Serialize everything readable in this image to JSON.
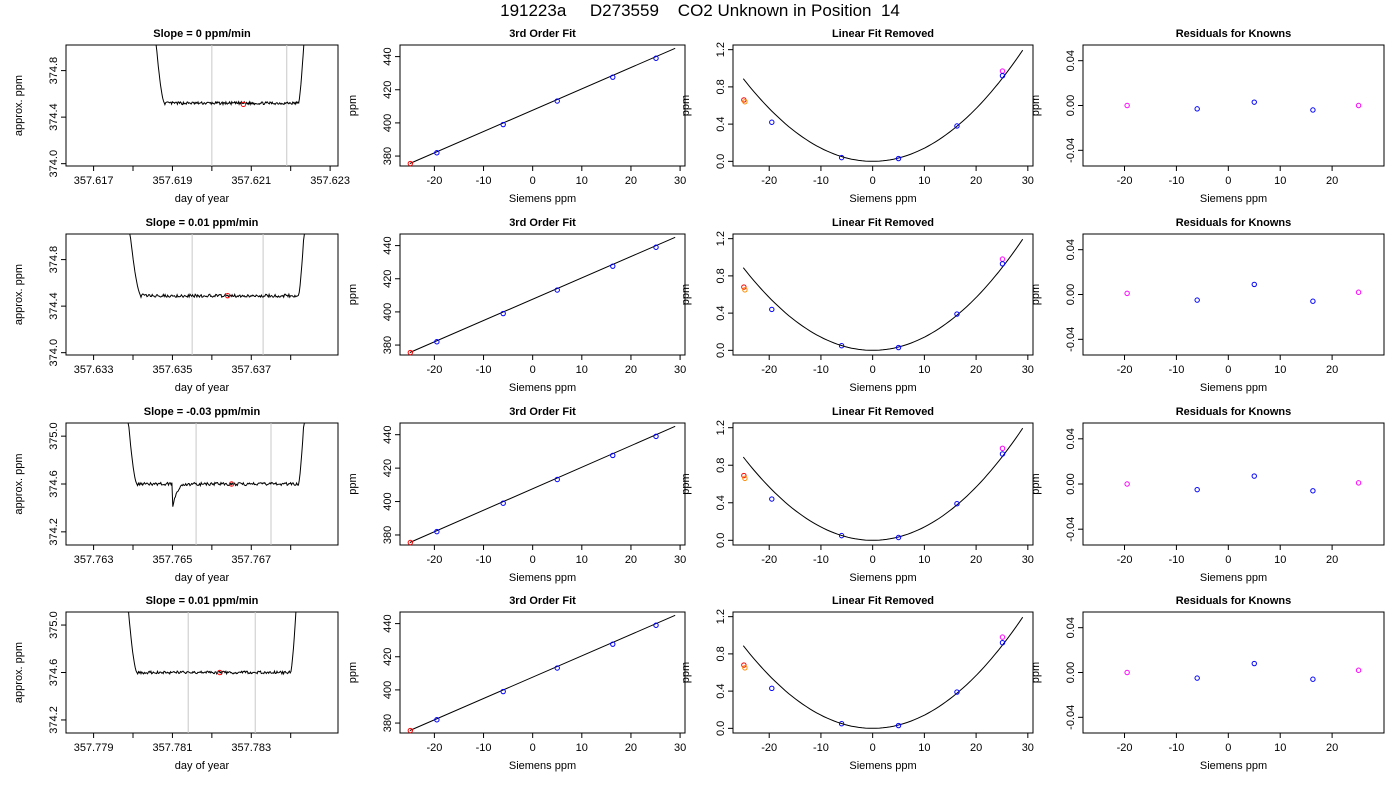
{
  "page_title": "191223a     D273559    CO2 Unknown in Position  14",
  "colors": {
    "line": "#000000",
    "cursor": "#c8c8c8",
    "point_red": "#ff0000",
    "point_blue": "#0000ff",
    "point_magenta": "#ff00ff",
    "point_orange": "#ff8c00"
  },
  "chart_data": [
    {
      "row": 1,
      "col": 1,
      "type": "line",
      "title": "Slope =  0  ppm/min",
      "xlabel": "day of year",
      "ylabel": "approx. ppm",
      "xlim": [
        357.6163,
        357.6232
      ],
      "ylim": [
        373.98,
        375.02
      ],
      "xticks": [
        "357.617",
        "357.619",
        "357.621",
        "357.623"
      ],
      "xticks_unlabeled": [
        357.618,
        357.62,
        357.622
      ],
      "yticks": [
        "374.0",
        "374.4",
        "374.8"
      ],
      "trace": {
        "start": 357.6184,
        "end": 357.6225,
        "flat_start": 357.6188,
        "flat_end": 357.6222,
        "baseline": 374.52,
        "noise": 0.012
      },
      "cursors": [
        357.62,
        357.6219
      ],
      "marker": {
        "x": 357.6208,
        "y": 374.51
      }
    },
    {
      "row": 1,
      "col": 2,
      "type": "scatter",
      "title": "3rd Order Fit",
      "xlabel": "Siemens ppm",
      "ylabel": "ppm",
      "xlim": [
        -27,
        31
      ],
      "ylim": [
        374,
        447
      ],
      "xticks": [
        "-20",
        "-10",
        "0",
        "10",
        "20",
        "30"
      ],
      "yticks": [
        "380",
        "400",
        "420",
        "440"
      ],
      "fit_line": {
        "x": [
          -25,
          29
        ],
        "y": [
          375.5,
          445.0
        ]
      },
      "points": [
        {
          "x": -24.9,
          "y": 375.5,
          "color": "red"
        },
        {
          "x": -19.5,
          "y": 382.0,
          "color": "blue"
        },
        {
          "x": -6.0,
          "y": 399.0,
          "color": "blue"
        },
        {
          "x": 5.0,
          "y": 413.2,
          "color": "blue"
        },
        {
          "x": 16.3,
          "y": 427.6,
          "color": "blue"
        },
        {
          "x": 25.1,
          "y": 439.0,
          "color": "blue"
        }
      ]
    },
    {
      "row": 1,
      "col": 3,
      "type": "scatter",
      "title": "Linear Fit Removed",
      "xlabel": "Siemens ppm",
      "ylabel": "ppm",
      "xlim": [
        -27,
        31
      ],
      "ylim": [
        -0.05,
        1.25
      ],
      "xticks": [
        "-20",
        "-10",
        "0",
        "10",
        "20",
        "30"
      ],
      "yticks": [
        "0.0",
        "0.4",
        "0.8",
        "1.2"
      ],
      "curve": {
        "coef": 0.00142,
        "xmin": -25,
        "xmax": 29
      },
      "points": [
        {
          "x": -24.9,
          "y": 0.66,
          "color": "red"
        },
        {
          "x": -24.7,
          "y": 0.64,
          "color": "orange"
        },
        {
          "x": -19.5,
          "y": 0.42,
          "color": "blue"
        },
        {
          "x": -6.0,
          "y": 0.04,
          "color": "blue"
        },
        {
          "x": 5.0,
          "y": 0.03,
          "color": "blue"
        },
        {
          "x": 16.3,
          "y": 0.38,
          "color": "blue"
        },
        {
          "x": 25.1,
          "y": 0.97,
          "color": "magenta"
        },
        {
          "x": 25.1,
          "y": 0.92,
          "color": "blue"
        }
      ]
    },
    {
      "row": 1,
      "col": 4,
      "type": "scatter",
      "title": "Residuals for Knowns",
      "xlabel": "Siemens ppm",
      "ylabel": "ppm",
      "xlim": [
        -28,
        30
      ],
      "ylim": [
        -0.054,
        0.054
      ],
      "xticks": [
        "-20",
        "-10",
        "0",
        "10",
        "20"
      ],
      "yticks": [
        "-0.04",
        "0.00",
        "0.04"
      ],
      "points": [
        {
          "x": -19.5,
          "y": 0.0,
          "color": "magenta"
        },
        {
          "x": -6.0,
          "y": -0.003,
          "color": "blue"
        },
        {
          "x": 5.0,
          "y": 0.003,
          "color": "blue"
        },
        {
          "x": 16.3,
          "y": -0.004,
          "color": "blue"
        },
        {
          "x": 25.1,
          "y": 0.0,
          "color": "magenta"
        }
      ]
    },
    {
      "row": 2,
      "col": 1,
      "type": "line",
      "title": "Slope =  0.01  ppm/min",
      "xlabel": "day of year",
      "ylabel": "approx. ppm",
      "xlim": [
        357.6323,
        357.6392
      ],
      "ylim": [
        373.98,
        375.02
      ],
      "xticks": [
        "357.633",
        "357.635",
        "357.637"
      ],
      "xticks_unlabeled": [
        357.634,
        357.636,
        357.638
      ],
      "yticks": [
        "374.0",
        "374.4",
        "374.8"
      ],
      "trace": {
        "start": 357.6337,
        "end": 357.6385,
        "flat_start": 357.6342,
        "flat_end": 357.6382,
        "baseline": 374.49,
        "noise": 0.014
      },
      "cursors": [
        357.6355,
        357.6373
      ],
      "marker": {
        "x": 357.6364,
        "y": 374.49
      }
    },
    {
      "row": 2,
      "col": 2,
      "type": "scatter",
      "title": "3rd Order Fit",
      "xlabel": "Siemens ppm",
      "ylabel": "ppm",
      "xlim": [
        -27,
        31
      ],
      "ylim": [
        374,
        447
      ],
      "xticks": [
        "-20",
        "-10",
        "0",
        "10",
        "20",
        "30"
      ],
      "yticks": [
        "380",
        "400",
        "420",
        "440"
      ],
      "fit_line": {
        "x": [
          -25,
          29
        ],
        "y": [
          375.5,
          445.0
        ]
      },
      "points": [
        {
          "x": -24.9,
          "y": 375.5,
          "color": "red"
        },
        {
          "x": -19.5,
          "y": 382.0,
          "color": "blue"
        },
        {
          "x": -6.0,
          "y": 399.0,
          "color": "blue"
        },
        {
          "x": 5.0,
          "y": 413.2,
          "color": "blue"
        },
        {
          "x": 16.3,
          "y": 427.6,
          "color": "blue"
        },
        {
          "x": 25.1,
          "y": 439.0,
          "color": "blue"
        }
      ]
    },
    {
      "row": 2,
      "col": 3,
      "type": "scatter",
      "title": "Linear Fit Removed",
      "xlabel": "Siemens ppm",
      "ylabel": "ppm",
      "xlim": [
        -27,
        31
      ],
      "ylim": [
        -0.05,
        1.25
      ],
      "xticks": [
        "-20",
        "-10",
        "0",
        "10",
        "20",
        "30"
      ],
      "yticks": [
        "0.0",
        "0.4",
        "0.8",
        "1.2"
      ],
      "curve": {
        "coef": 0.00142,
        "xmin": -25,
        "xmax": 29
      },
      "points": [
        {
          "x": -24.9,
          "y": 0.68,
          "color": "red"
        },
        {
          "x": -24.7,
          "y": 0.65,
          "color": "orange"
        },
        {
          "x": -19.5,
          "y": 0.44,
          "color": "blue"
        },
        {
          "x": -6.0,
          "y": 0.05,
          "color": "blue"
        },
        {
          "x": 5.0,
          "y": 0.03,
          "color": "blue"
        },
        {
          "x": 16.3,
          "y": 0.39,
          "color": "blue"
        },
        {
          "x": 25.1,
          "y": 0.98,
          "color": "magenta"
        },
        {
          "x": 25.1,
          "y": 0.93,
          "color": "blue"
        }
      ]
    },
    {
      "row": 2,
      "col": 4,
      "type": "scatter",
      "title": "Residuals for Knowns",
      "xlabel": "Siemens ppm",
      "ylabel": "ppm",
      "xlim": [
        -28,
        30
      ],
      "ylim": [
        -0.054,
        0.054
      ],
      "xticks": [
        "-20",
        "-10",
        "0",
        "10",
        "20"
      ],
      "yticks": [
        "-0.04",
        "0.00",
        "0.04"
      ],
      "points": [
        {
          "x": -19.5,
          "y": 0.001,
          "color": "magenta"
        },
        {
          "x": -6.0,
          "y": -0.005,
          "color": "blue"
        },
        {
          "x": 5.0,
          "y": 0.009,
          "color": "blue"
        },
        {
          "x": 16.3,
          "y": -0.006,
          "color": "blue"
        },
        {
          "x": 25.1,
          "y": 0.002,
          "color": "magenta"
        }
      ]
    },
    {
      "row": 3,
      "col": 1,
      "type": "line",
      "title": "Slope =  -0.03  ppm/min",
      "xlabel": "day of year",
      "ylabel": "approx. ppm",
      "xlim": [
        357.7623,
        357.7692
      ],
      "ylim": [
        374.09,
        375.11
      ],
      "xticks": [
        "357.763",
        "357.765",
        "357.767"
      ],
      "xticks_unlabeled": [
        357.764,
        357.766,
        357.768
      ],
      "yticks": [
        "374.2",
        "374.6",
        "375.0"
      ],
      "trace": {
        "start": 357.7637,
        "end": 357.7685,
        "flat_start": 357.7641,
        "flat_end": 357.7682,
        "baseline": 374.6,
        "noise": 0.013,
        "dip_x": 357.765,
        "dip_depth": 0.2
      },
      "cursors": [
        357.7656,
        357.7675
      ],
      "marker": {
        "x": 357.7665,
        "y": 374.6
      }
    },
    {
      "row": 3,
      "col": 2,
      "type": "scatter",
      "title": "3rd Order Fit",
      "xlabel": "Siemens ppm",
      "ylabel": "ppm",
      "xlim": [
        -27,
        31
      ],
      "ylim": [
        374,
        447
      ],
      "xticks": [
        "-20",
        "-10",
        "0",
        "10",
        "20",
        "30"
      ],
      "yticks": [
        "380",
        "400",
        "420",
        "440"
      ],
      "fit_line": {
        "x": [
          -25,
          29
        ],
        "y": [
          375.5,
          445.0
        ]
      },
      "points": [
        {
          "x": -24.9,
          "y": 375.5,
          "color": "red"
        },
        {
          "x": -19.5,
          "y": 382.0,
          "color": "blue"
        },
        {
          "x": -6.0,
          "y": 399.0,
          "color": "blue"
        },
        {
          "x": 5.0,
          "y": 413.2,
          "color": "blue"
        },
        {
          "x": 16.3,
          "y": 427.6,
          "color": "blue"
        },
        {
          "x": 25.1,
          "y": 439.0,
          "color": "blue"
        }
      ]
    },
    {
      "row": 3,
      "col": 3,
      "type": "scatter",
      "title": "Linear Fit Removed",
      "xlabel": "Siemens ppm",
      "ylabel": "ppm",
      "xlim": [
        -27,
        31
      ],
      "ylim": [
        -0.05,
        1.25
      ],
      "xticks": [
        "-20",
        "-10",
        "0",
        "10",
        "20",
        "30"
      ],
      "yticks": [
        "0.0",
        "0.4",
        "0.8",
        "1.2"
      ],
      "curve": {
        "coef": 0.00142,
        "xmin": -25,
        "xmax": 29
      },
      "points": [
        {
          "x": -24.9,
          "y": 0.69,
          "color": "red"
        },
        {
          "x": -24.7,
          "y": 0.66,
          "color": "orange"
        },
        {
          "x": -19.5,
          "y": 0.44,
          "color": "blue"
        },
        {
          "x": -6.0,
          "y": 0.05,
          "color": "blue"
        },
        {
          "x": 5.0,
          "y": 0.03,
          "color": "blue"
        },
        {
          "x": 16.3,
          "y": 0.39,
          "color": "blue"
        },
        {
          "x": 25.1,
          "y": 0.98,
          "color": "magenta"
        },
        {
          "x": 25.1,
          "y": 0.92,
          "color": "blue"
        }
      ]
    },
    {
      "row": 3,
      "col": 4,
      "type": "scatter",
      "title": "Residuals for Knowns",
      "xlabel": "Siemens ppm",
      "ylabel": "ppm",
      "xlim": [
        -28,
        30
      ],
      "ylim": [
        -0.054,
        0.054
      ],
      "xticks": [
        "-20",
        "-10",
        "0",
        "10",
        "20"
      ],
      "yticks": [
        "-0.04",
        "0.00",
        "0.04"
      ],
      "points": [
        {
          "x": -19.5,
          "y": 0.0,
          "color": "magenta"
        },
        {
          "x": -6.0,
          "y": -0.005,
          "color": "blue"
        },
        {
          "x": 5.0,
          "y": 0.007,
          "color": "blue"
        },
        {
          "x": 16.3,
          "y": -0.006,
          "color": "blue"
        },
        {
          "x": 25.1,
          "y": 0.001,
          "color": "magenta"
        }
      ]
    },
    {
      "row": 4,
      "col": 1,
      "type": "line",
      "title": "Slope =  0.01  ppm/min",
      "xlabel": "day of year",
      "ylabel": "approx. ppm",
      "xlim": [
        357.7783,
        357.7852
      ],
      "ylim": [
        374.09,
        375.11
      ],
      "xticks": [
        "357.779",
        "357.781",
        "357.783"
      ],
      "xticks_unlabeled": [
        357.78,
        357.782,
        357.784
      ],
      "yticks": [
        "374.2",
        "374.6",
        "375.0"
      ],
      "trace": {
        "start": 357.7797,
        "end": 357.7843,
        "flat_start": 357.7801,
        "flat_end": 357.784,
        "baseline": 374.6,
        "noise": 0.012
      },
      "cursors": [
        357.7814,
        357.7831
      ],
      "marker": {
        "x": 357.7822,
        "y": 374.6
      }
    },
    {
      "row": 4,
      "col": 2,
      "type": "scatter",
      "title": "3rd Order Fit",
      "xlabel": "Siemens ppm",
      "ylabel": "ppm",
      "xlim": [
        -27,
        31
      ],
      "ylim": [
        374,
        447
      ],
      "xticks": [
        "-20",
        "-10",
        "0",
        "10",
        "20",
        "30"
      ],
      "yticks": [
        "380",
        "400",
        "420",
        "440"
      ],
      "fit_line": {
        "x": [
          -25,
          29
        ],
        "y": [
          375.5,
          445.0
        ]
      },
      "points": [
        {
          "x": -24.9,
          "y": 375.5,
          "color": "red"
        },
        {
          "x": -19.5,
          "y": 382.0,
          "color": "blue"
        },
        {
          "x": -6.0,
          "y": 399.0,
          "color": "blue"
        },
        {
          "x": 5.0,
          "y": 413.2,
          "color": "blue"
        },
        {
          "x": 16.3,
          "y": 427.6,
          "color": "blue"
        },
        {
          "x": 25.1,
          "y": 439.0,
          "color": "blue"
        }
      ]
    },
    {
      "row": 4,
      "col": 3,
      "type": "scatter",
      "title": "Linear Fit Removed",
      "xlabel": "Siemens ppm",
      "ylabel": "ppm",
      "xlim": [
        -27,
        31
      ],
      "ylim": [
        -0.05,
        1.25
      ],
      "xticks": [
        "-20",
        "-10",
        "0",
        "10",
        "20",
        "30"
      ],
      "yticks": [
        "0.0",
        "0.4",
        "0.8",
        "1.2"
      ],
      "curve": {
        "coef": 0.00142,
        "xmin": -25,
        "xmax": 29
      },
      "points": [
        {
          "x": -24.9,
          "y": 0.68,
          "color": "red"
        },
        {
          "x": -24.7,
          "y": 0.65,
          "color": "orange"
        },
        {
          "x": -19.5,
          "y": 0.43,
          "color": "blue"
        },
        {
          "x": -6.0,
          "y": 0.05,
          "color": "blue"
        },
        {
          "x": 5.0,
          "y": 0.03,
          "color": "blue"
        },
        {
          "x": 16.3,
          "y": 0.39,
          "color": "blue"
        },
        {
          "x": 25.1,
          "y": 0.98,
          "color": "magenta"
        },
        {
          "x": 25.1,
          "y": 0.92,
          "color": "blue"
        }
      ]
    },
    {
      "row": 4,
      "col": 4,
      "type": "scatter",
      "title": "Residuals for Knowns",
      "xlabel": "Siemens ppm",
      "ylabel": "ppm",
      "xlim": [
        -28,
        30
      ],
      "ylim": [
        -0.054,
        0.054
      ],
      "xticks": [
        "-20",
        "-10",
        "0",
        "10",
        "20"
      ],
      "yticks": [
        "-0.04",
        "0.00",
        "0.04"
      ],
      "points": [
        {
          "x": -19.5,
          "y": 0.0,
          "color": "magenta"
        },
        {
          "x": -6.0,
          "y": -0.005,
          "color": "blue"
        },
        {
          "x": 5.0,
          "y": 0.008,
          "color": "blue"
        },
        {
          "x": 16.3,
          "y": -0.006,
          "color": "blue"
        },
        {
          "x": 25.1,
          "y": 0.002,
          "color": "magenta"
        }
      ]
    }
  ]
}
